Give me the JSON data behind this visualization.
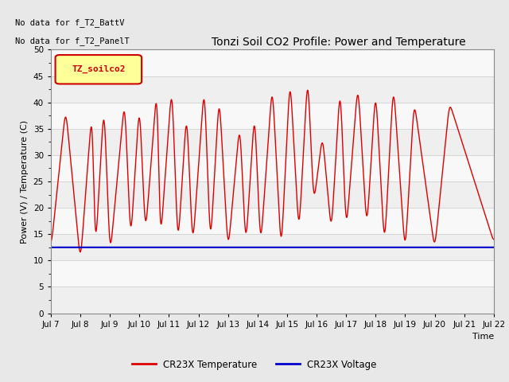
{
  "title": "Tonzi Soil CO2 Profile: Power and Temperature",
  "ylabel": "Power (V) / Temperature (C)",
  "xlabel": "Time",
  "ylim": [
    0,
    50
  ],
  "yticks": [
    0,
    5,
    10,
    15,
    20,
    25,
    30,
    35,
    40,
    45,
    50
  ],
  "xtick_labels": [
    "Jul 7",
    "Jul 8",
    "Jul 9",
    "Jul 10",
    "Jul 11",
    "Jul 12",
    "Jul 13",
    "Jul 14",
    "Jul 15",
    "Jul 16",
    "Jul 17",
    "Jul 18",
    "Jul 19",
    "Jul 20",
    "Jul 21",
    "Jul 22"
  ],
  "no_data_text1": "No data for f_T2_BattV",
  "no_data_text2": "No data for f_T2_PanelT",
  "legend_box_label": "TZ_soilco2",
  "legend_box_color": "#FFFF99",
  "legend_box_edge": "#CC0000",
  "temp_color": "#DD0000",
  "volt_color": "#0000CC",
  "temp_label": "CR23X Temperature",
  "volt_label": "CR23X Voltage",
  "volt_value": 12.5,
  "grid_color": "#d0d0d0",
  "bg_color": "#e8e8e8",
  "plot_bg": "#f8f8f8",
  "title_fontsize": 10,
  "label_fontsize": 8,
  "tick_fontsize": 7.5,
  "nodata_fontsize": 7.5
}
